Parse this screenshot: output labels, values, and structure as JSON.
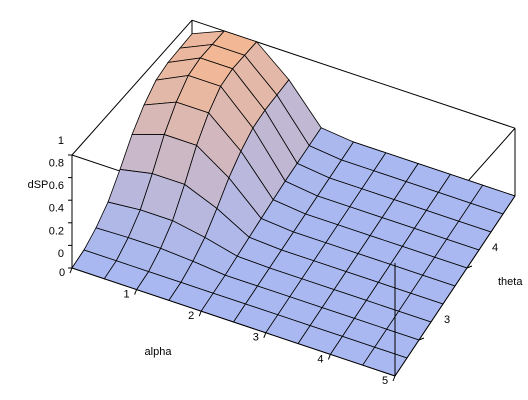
{
  "chart_data": {
    "type": "surface",
    "x_label": "alpha",
    "y_label": "theta",
    "z_label": "dSP",
    "x": [
      0,
      0.5,
      1,
      1.5,
      2,
      2.5,
      3,
      3.5,
      4,
      4.5,
      5
    ],
    "y": [
      2.5,
      2.75,
      3,
      3.25,
      3.5,
      3.75,
      4,
      4.25,
      4.5,
      4.75,
      5
    ],
    "z": [
      [
        0,
        0,
        0,
        0,
        0,
        0,
        0,
        0,
        0,
        0,
        0
      ],
      [
        0,
        0,
        0,
        0,
        0,
        0,
        0,
        0,
        0,
        0,
        0
      ],
      [
        0.04,
        0.05,
        0.05,
        0.03,
        0,
        0,
        0,
        0,
        0,
        0,
        0
      ],
      [
        0.12,
        0.15,
        0.15,
        0.09,
        0.01,
        0,
        0,
        0,
        0,
        0,
        0
      ],
      [
        0.28,
        0.35,
        0.35,
        0.21,
        0.02,
        0,
        0,
        0,
        0,
        0,
        0
      ],
      [
        0.48,
        0.6,
        0.6,
        0.36,
        0.03,
        0,
        0,
        0,
        0,
        0,
        0
      ],
      [
        0.64,
        0.8,
        0.8,
        0.48,
        0.04,
        0,
        0,
        0,
        0,
        0,
        0
      ],
      [
        0.76,
        0.95,
        0.95,
        0.57,
        0.05,
        0,
        0,
        0,
        0,
        0,
        0
      ],
      [
        0.8,
        1,
        1,
        0.6,
        0.05,
        0,
        0,
        0,
        0,
        0,
        0
      ],
      [
        0.8,
        1,
        1,
        0.6,
        0.05,
        0,
        0,
        0,
        0,
        0,
        0
      ],
      [
        0.8,
        1,
        1,
        0.6,
        0.05,
        0,
        0,
        0,
        0,
        0,
        0
      ]
    ],
    "xlim": [
      0,
      5
    ],
    "ylim": [
      2.5,
      5
    ],
    "zlim": [
      0,
      1
    ],
    "xticks": [
      0,
      1,
      2,
      3,
      4,
      5
    ],
    "yticks": [
      3,
      4
    ],
    "zticks": [
      0,
      0.2,
      0.4,
      0.6,
      0.8,
      1
    ],
    "color_low": "#a9b8f0",
    "color_high": "#f2b896"
  }
}
